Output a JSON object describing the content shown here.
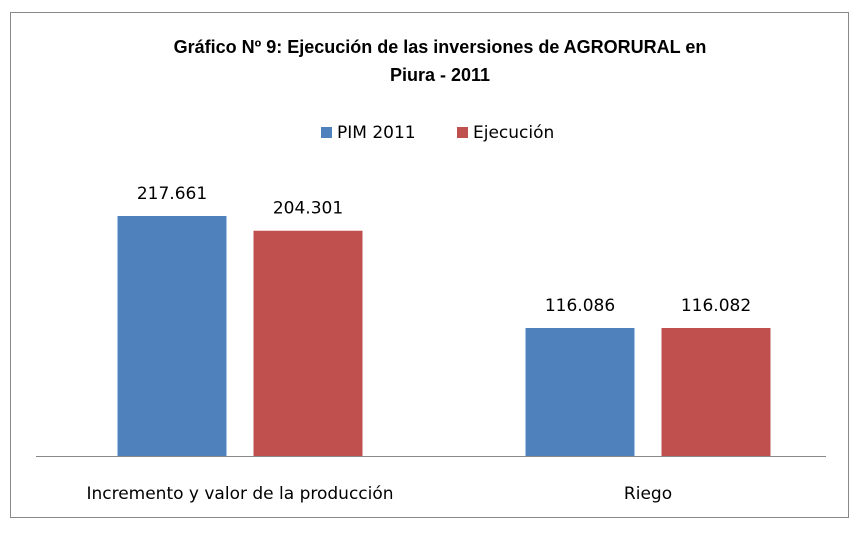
{
  "chart_data": {
    "type": "bar",
    "title": [
      "Gráfico Nº 9: Ejecución de las inversiones de AGRORURAL en",
      "Piura - 2011"
    ],
    "categories": [
      "Incremento y valor de la producción",
      "Riego"
    ],
    "series": [
      {
        "name": "PIM 2011",
        "color": "#4f81bd",
        "values": [
          217.661,
          116.086
        ]
      },
      {
        "name": "Ejecución",
        "color": "#c0504d",
        "values": [
          204.301,
          116.082
        ]
      }
    ],
    "legend": "top"
  }
}
